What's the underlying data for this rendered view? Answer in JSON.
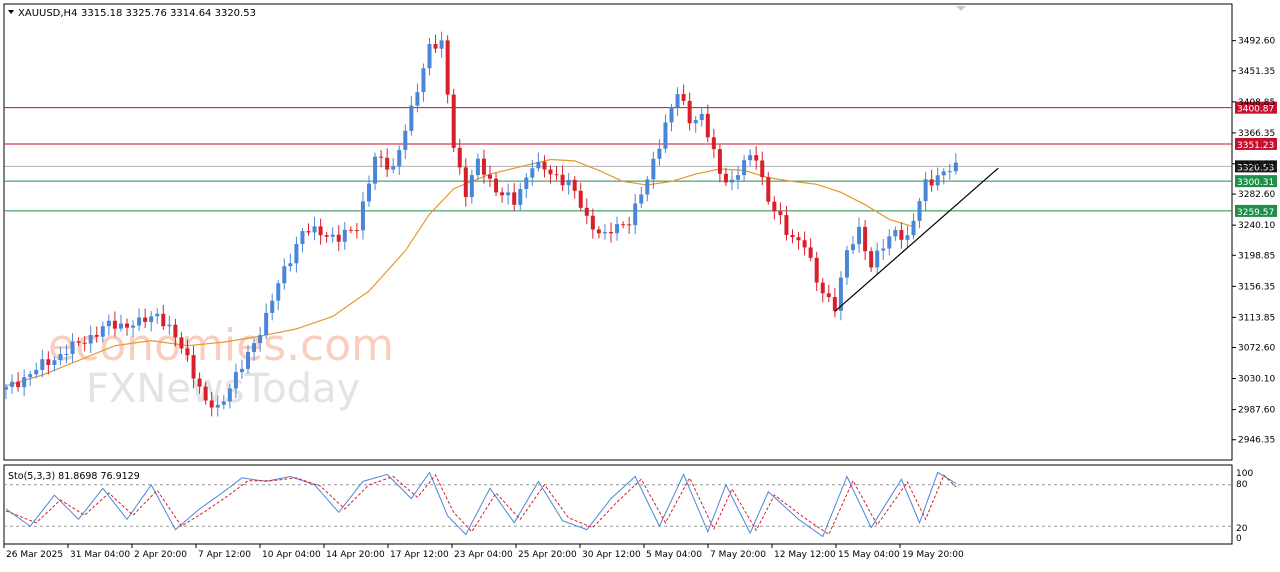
{
  "header": {
    "symbol": "XAUUSD,H4",
    "ohlc": "3315.18 3325.76 3314.64 3320.53"
  },
  "watermark": {
    "line1": "economies.com",
    "line2": "FXNewsToday"
  },
  "stochastic": {
    "label": "Sto(5,3,3) 81.8698 76.9129",
    "levels": [
      "100",
      "80",
      "20",
      "0"
    ]
  },
  "colors": {
    "bull": "#4a86d8",
    "bear": "#d8202a",
    "ma": "#e39a2e",
    "resistance": "#c8102e",
    "support": "#1f8f4a",
    "current": "#1a1a1a"
  },
  "chart_data": {
    "type": "candlestick",
    "title": "",
    "ylim": [
      2925,
      3525
    ],
    "y_ticks": [
      "3492.60",
      "3451.35",
      "3408.85",
      "3366.35",
      "3324.10",
      "3282.60",
      "3240.10",
      "3198.85",
      "3156.35",
      "3113.85",
      "3072.60",
      "3030.10",
      "2987.60",
      "2946.35"
    ],
    "x_ticks": [
      "26 Mar 2025",
      "31 Mar 04:00",
      "2 Apr 20:00",
      "7 Apr 12:00",
      "10 Apr 04:00",
      "14 Apr 20:00",
      "17 Apr 12:00",
      "23 Apr 04:00",
      "25 Apr 20:00",
      "30 Apr 12:00",
      "5 May 04:00",
      "7 May 20:00",
      "12 May 12:00",
      "15 May 04:00",
      "19 May 20:00"
    ],
    "price_levels": [
      {
        "label": "3400.87",
        "value": 3400.87,
        "kind": "resistance"
      },
      {
        "label": "3351.23",
        "value": 3351.23,
        "kind": "resistance"
      },
      {
        "label": "3320.53",
        "value": 3320.53,
        "kind": "current"
      },
      {
        "label": "3300.31",
        "value": 3300.31,
        "kind": "support"
      },
      {
        "label": "3259.57",
        "value": 3259.57,
        "kind": "support"
      }
    ],
    "trendline": [
      {
        "bar": 137,
        "value": 3122
      },
      {
        "bar": 164,
        "value": 3318
      }
    ],
    "close_path": [
      [
        0,
        3015
      ],
      [
        6,
        3048
      ],
      [
        12,
        3078
      ],
      [
        17,
        3103
      ],
      [
        22,
        3105
      ],
      [
        25,
        3120
      ],
      [
        28,
        3085
      ],
      [
        30,
        3060
      ],
      [
        33,
        2995
      ],
      [
        35,
        2990
      ],
      [
        37,
        3020
      ],
      [
        39,
        3045
      ],
      [
        43,
        3115
      ],
      [
        46,
        3180
      ],
      [
        49,
        3230
      ],
      [
        52,
        3232
      ],
      [
        55,
        3220
      ],
      [
        58,
        3240
      ],
      [
        61,
        3330
      ],
      [
        64,
        3320
      ],
      [
        67,
        3395
      ],
      [
        70,
        3488
      ],
      [
        72,
        3485
      ],
      [
        74,
        3350
      ],
      [
        76,
        3285
      ],
      [
        78,
        3325
      ],
      [
        81,
        3290
      ],
      [
        84,
        3270
      ],
      [
        87,
        3325
      ],
      [
        90,
        3310
      ],
      [
        93,
        3300
      ],
      [
        96,
        3248
      ],
      [
        99,
        3225
      ],
      [
        103,
        3248
      ],
      [
        106,
        3300
      ],
      [
        109,
        3380
      ],
      [
        111,
        3420
      ],
      [
        113,
        3385
      ],
      [
        115,
        3390
      ],
      [
        118,
        3310
      ],
      [
        120,
        3300
      ],
      [
        122,
        3325
      ],
      [
        124,
        3335
      ],
      [
        126,
        3275
      ],
      [
        129,
        3230
      ],
      [
        132,
        3215
      ],
      [
        134,
        3160
      ],
      [
        137,
        3130
      ],
      [
        139,
        3200
      ],
      [
        141,
        3235
      ],
      [
        143,
        3185
      ],
      [
        145,
        3210
      ],
      [
        147,
        3235
      ],
      [
        149,
        3220
      ],
      [
        150,
        3245
      ],
      [
        152,
        3300
      ],
      [
        155,
        3310
      ],
      [
        157,
        3320
      ]
    ],
    "ma_path": [
      [
        0,
        3020
      ],
      [
        6,
        3035
      ],
      [
        12,
        3055
      ],
      [
        18,
        3075
      ],
      [
        24,
        3082
      ],
      [
        30,
        3075
      ],
      [
        36,
        3080
      ],
      [
        42,
        3088
      ],
      [
        48,
        3098
      ],
      [
        54,
        3115
      ],
      [
        60,
        3150
      ],
      [
        66,
        3205
      ],
      [
        70,
        3255
      ],
      [
        74,
        3290
      ],
      [
        80,
        3310
      ],
      [
        86,
        3322
      ],
      [
        90,
        3330
      ],
      [
        94,
        3328
      ],
      [
        98,
        3315
      ],
      [
        102,
        3300
      ],
      [
        106,
        3295
      ],
      [
        110,
        3300
      ],
      [
        114,
        3310
      ],
      [
        118,
        3317
      ],
      [
        122,
        3315
      ],
      [
        126,
        3305
      ],
      [
        130,
        3300
      ],
      [
        134,
        3296
      ],
      [
        138,
        3285
      ],
      [
        142,
        3268
      ],
      [
        146,
        3248
      ],
      [
        150,
        3238
      ]
    ],
    "stochastic": {
      "ylim": [
        0,
        100
      ],
      "levels": [
        80,
        20
      ],
      "k_path": [
        [
          0,
          45
        ],
        [
          4,
          20
        ],
        [
          8,
          65
        ],
        [
          12,
          30
        ],
        [
          16,
          75
        ],
        [
          20,
          30
        ],
        [
          24,
          80
        ],
        [
          28,
          15
        ],
        [
          32,
          45
        ],
        [
          36,
          70
        ],
        [
          39,
          90
        ],
        [
          43,
          85
        ],
        [
          47,
          92
        ],
        [
          51,
          80
        ],
        [
          55,
          40
        ],
        [
          59,
          85
        ],
        [
          63,
          95
        ],
        [
          67,
          60
        ],
        [
          70,
          98
        ],
        [
          73,
          35
        ],
        [
          76,
          8
        ],
        [
          80,
          75
        ],
        [
          84,
          25
        ],
        [
          88,
          85
        ],
        [
          92,
          28
        ],
        [
          96,
          15
        ],
        [
          100,
          60
        ],
        [
          104,
          92
        ],
        [
          108,
          20
        ],
        [
          112,
          95
        ],
        [
          116,
          12
        ],
        [
          119,
          80
        ],
        [
          123,
          10
        ],
        [
          126,
          70
        ],
        [
          131,
          30
        ],
        [
          135,
          5
        ],
        [
          139,
          92
        ],
        [
          143,
          18
        ],
        [
          148,
          88
        ],
        [
          151,
          25
        ],
        [
          154,
          98
        ],
        [
          157,
          82
        ]
      ],
      "d_path": [
        [
          0,
          42
        ],
        [
          5,
          25
        ],
        [
          9,
          58
        ],
        [
          13,
          36
        ],
        [
          17,
          68
        ],
        [
          21,
          36
        ],
        [
          25,
          72
        ],
        [
          29,
          20
        ],
        [
          33,
          42
        ],
        [
          37,
          66
        ],
        [
          40,
          86
        ],
        [
          44,
          86
        ],
        [
          48,
          90
        ],
        [
          52,
          78
        ],
        [
          56,
          45
        ],
        [
          60,
          80
        ],
        [
          64,
          92
        ],
        [
          68,
          62
        ],
        [
          71,
          94
        ],
        [
          74,
          40
        ],
        [
          77,
          12
        ],
        [
          81,
          68
        ],
        [
          85,
          30
        ],
        [
          89,
          80
        ],
        [
          93,
          32
        ],
        [
          97,
          18
        ],
        [
          101,
          55
        ],
        [
          105,
          88
        ],
        [
          109,
          25
        ],
        [
          113,
          90
        ],
        [
          117,
          16
        ],
        [
          120,
          74
        ],
        [
          124,
          14
        ],
        [
          127,
          65
        ],
        [
          132,
          32
        ],
        [
          136,
          8
        ],
        [
          140,
          86
        ],
        [
          144,
          22
        ],
        [
          149,
          84
        ],
        [
          152,
          30
        ],
        [
          155,
          94
        ],
        [
          157,
          77
        ]
      ]
    }
  }
}
